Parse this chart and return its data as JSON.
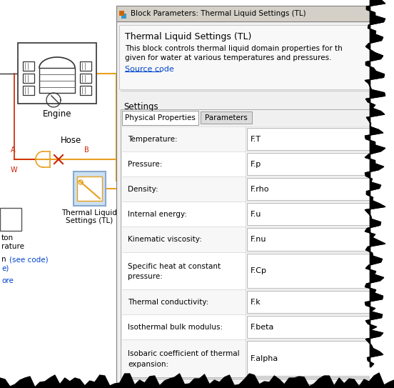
{
  "title_bar_text": "Block Parameters: Thermal Liquid Settings (TL)",
  "dialog_bg": "#f0f0f0",
  "block_title": "Thermal Liquid Settings (TL)",
  "description_line1": "This block controls thermal liquid domain properties for th",
  "description_line2": "given for water at various temperatures and pressures.",
  "source_code_text": "Source code",
  "source_code_color": "#0044cc",
  "settings_label": "Settings",
  "tab1": "Physical Properties",
  "tab2": "Parameters",
  "rows": [
    {
      "label": "Temperature:",
      "value": "F.T",
      "multiline": false
    },
    {
      "label": "Pressure:",
      "value": "F.p",
      "multiline": false
    },
    {
      "label": "Density:",
      "value": "F.rho",
      "multiline": false
    },
    {
      "label": "Internal energy:",
      "value": "F.u",
      "multiline": false
    },
    {
      "label": "Kinematic viscosity:",
      "value": "F.nu",
      "multiline": false
    },
    {
      "label": "Specific heat at constant\npressure:",
      "value": "F.Cp",
      "multiline": true
    },
    {
      "label": "Thermal conductivity:",
      "value": "F.k",
      "multiline": false
    },
    {
      "label": "Isothermal bulk modulus:",
      "value": "F.beta",
      "multiline": false
    },
    {
      "label": "Isobaric coefficient of thermal\nexpansion:",
      "value": "F.alpha",
      "multiline": true
    }
  ],
  "left_panel_bg": "#ffffff",
  "orange_color": "#e8a020",
  "red_color": "#cc2200",
  "engine_label": "Engine",
  "hose_label": "Hose",
  "tl_label_line1": "Thermal Liquid",
  "tl_label_line2": "Settings (TL)"
}
